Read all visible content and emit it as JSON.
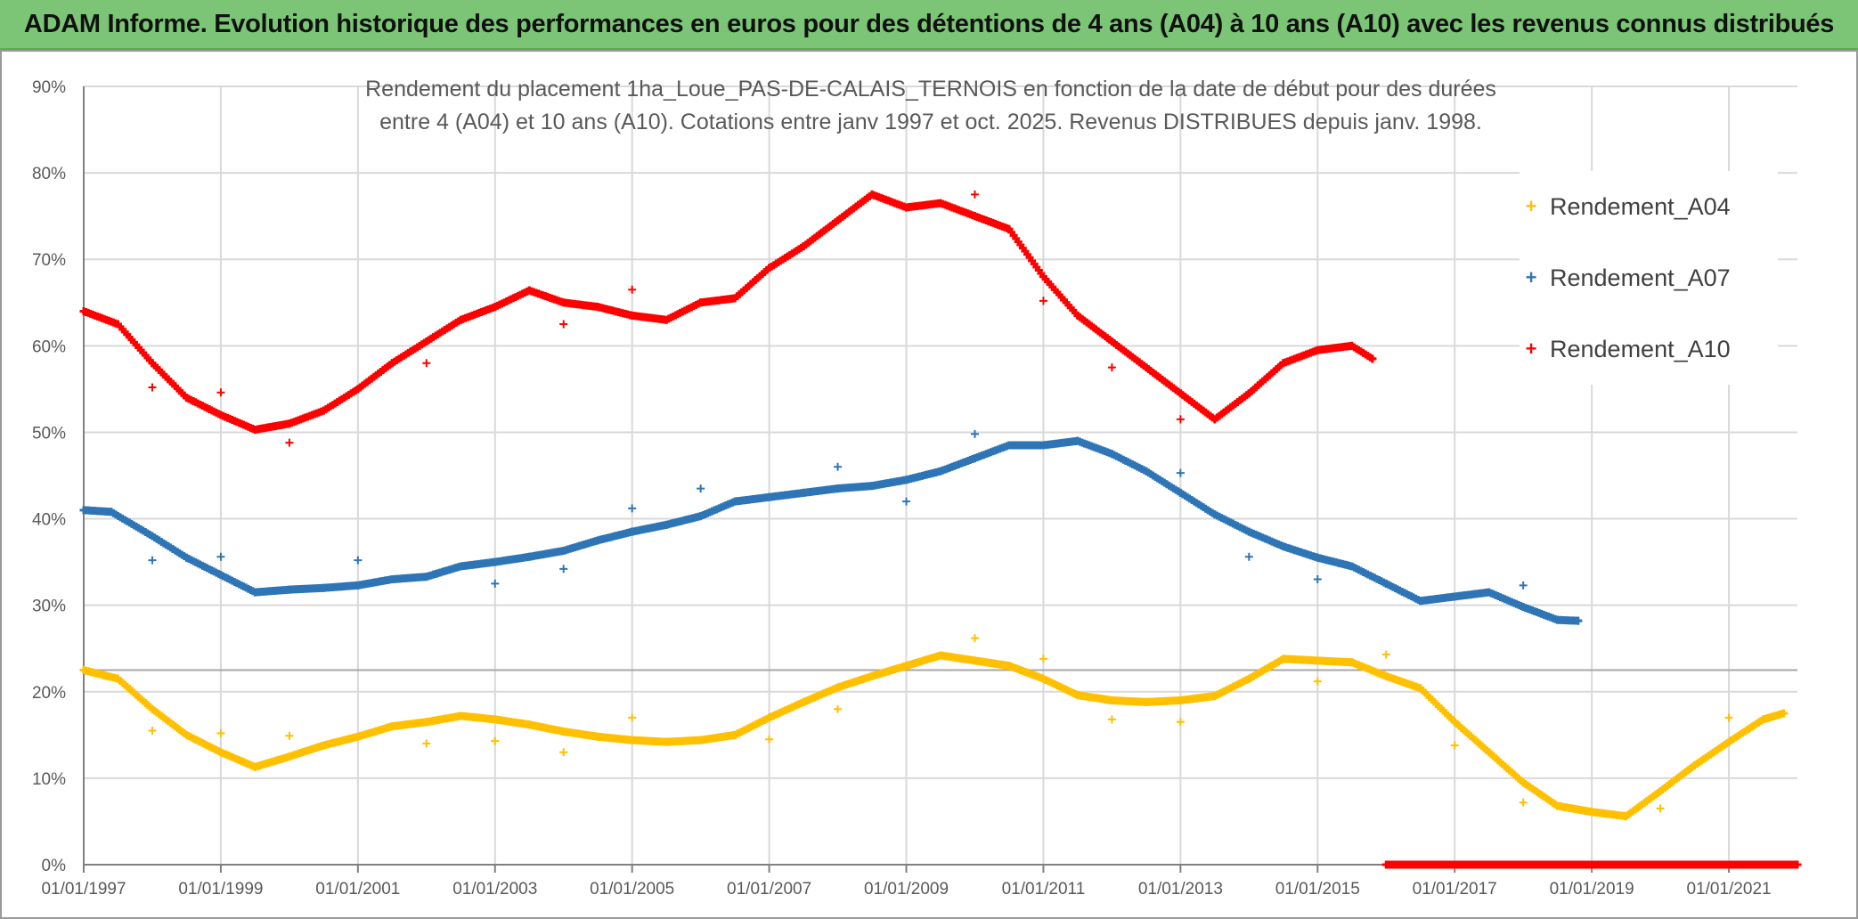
{
  "banner": {
    "title": "ADAM Informe. Evolution historique des performances en euros pour des détentions de 4 ans (A04) à 10 ans (A10) avec les revenus connus distribués"
  },
  "chart_data": {
    "type": "scatter",
    "title_line1": "Rendement du placement 1ha_Loue_PAS-DE-CALAIS_TERNOIS en fonction de la date de début pour des durées",
    "title_line2": "entre 4 (A04) et 10 ans (A10). Cotations entre janv 1997 et oct. 2025. Revenus DISTRIBUES depuis janv. 1998.",
    "xlabel": "",
    "ylabel": "",
    "xlim": [
      1997.0,
      2022.0
    ],
    "ylim": [
      0,
      90
    ],
    "grid": true,
    "legend_position": "top-right",
    "x_tick_values": [
      1997,
      1999,
      2001,
      2003,
      2005,
      2007,
      2009,
      2011,
      2013,
      2015,
      2017,
      2019,
      2021
    ],
    "x_tick_labels": [
      "01/01/1997",
      "01/01/1999",
      "01/01/2001",
      "01/01/2003",
      "01/01/2005",
      "01/01/2007",
      "01/01/2009",
      "01/01/2011",
      "01/01/2013",
      "01/01/2015",
      "01/01/2017",
      "01/01/2019",
      "01/01/2021"
    ],
    "y_tick_values": [
      0,
      10,
      20,
      30,
      40,
      50,
      60,
      70,
      80,
      90
    ],
    "y_tick_labels": [
      "0%",
      "10%",
      "20%",
      "30%",
      "40%",
      "50%",
      "60%",
      "70%",
      "80%",
      "90%"
    ],
    "reference_line_y": 22.5,
    "series": [
      {
        "name": "Rendement_A04",
        "color": "#ffc000",
        "marker": "+",
        "x": [
          1997.0,
          1997.5,
          1998.0,
          1998.5,
          1999.0,
          1999.5,
          2000.0,
          2000.5,
          2001.0,
          2001.5,
          2002.0,
          2002.5,
          2003.0,
          2003.5,
          2004.0,
          2004.5,
          2005.0,
          2005.5,
          2006.0,
          2006.5,
          2007.0,
          2007.5,
          2008.0,
          2008.5,
          2009.0,
          2009.5,
          2010.0,
          2010.5,
          2011.0,
          2011.5,
          2012.0,
          2012.5,
          2013.0,
          2013.5,
          2014.0,
          2014.5,
          2015.0,
          2015.5,
          2016.0,
          2016.5,
          2017.0,
          2017.5,
          2018.0,
          2018.5,
          2019.0,
          2019.5,
          2020.0,
          2020.5,
          2021.0,
          2021.5,
          2021.8
        ],
        "values": [
          22.5,
          21.5,
          18.0,
          15.0,
          13.0,
          11.3,
          12.5,
          13.8,
          14.8,
          16.0,
          16.5,
          17.2,
          16.8,
          16.2,
          15.4,
          14.8,
          14.4,
          14.2,
          14.4,
          15.0,
          17.0,
          18.8,
          20.5,
          21.8,
          23.0,
          24.2,
          23.6,
          23.0,
          21.5,
          19.6,
          19.0,
          18.8,
          19.0,
          19.5,
          21.5,
          23.8,
          23.6,
          23.4,
          21.8,
          20.4,
          16.5,
          13.0,
          9.5,
          6.8,
          6.1,
          5.6,
          8.5,
          11.5,
          14.2,
          16.8,
          17.5
        ],
        "outliers_x": [
          1998.0,
          1999.0,
          2000.0,
          2002.0,
          2003.0,
          2004.0,
          2005.0,
          2007.0,
          2008.0,
          2010.0,
          2011.0,
          2012.0,
          2013.0,
          2015.0,
          2016.0,
          2017.0,
          2018.0,
          2020.0,
          2021.0
        ],
        "outliers_values": [
          15.5,
          15.2,
          14.9,
          14.0,
          14.3,
          13.0,
          17.0,
          14.5,
          18.0,
          26.2,
          23.8,
          16.8,
          16.5,
          21.2,
          24.3,
          13.8,
          7.2,
          6.5,
          17.0
        ]
      },
      {
        "name": "Rendement_A07",
        "color": "#2e75b6",
        "marker": "+",
        "x": [
          1997.0,
          1997.4,
          1998.0,
          1998.5,
          1999.0,
          1999.5,
          2000.0,
          2000.5,
          2001.0,
          2001.5,
          2002.0,
          2002.5,
          2003.0,
          2003.5,
          2004.0,
          2004.5,
          2005.0,
          2005.5,
          2006.0,
          2006.5,
          2007.0,
          2007.5,
          2008.0,
          2008.5,
          2009.0,
          2009.5,
          2010.0,
          2010.5,
          2011.0,
          2011.5,
          2012.0,
          2012.5,
          2013.0,
          2013.5,
          2014.0,
          2014.5,
          2015.0,
          2015.5,
          2016.0,
          2016.5,
          2017.0,
          2017.5,
          2018.0,
          2018.5,
          2018.8
        ],
        "values": [
          41.0,
          40.8,
          38.0,
          35.5,
          33.5,
          31.5,
          31.8,
          32.0,
          32.3,
          33.0,
          33.3,
          34.5,
          35.0,
          35.6,
          36.3,
          37.5,
          38.5,
          39.3,
          40.3,
          42.0,
          42.5,
          43.0,
          43.5,
          43.8,
          44.5,
          45.5,
          47.0,
          48.5,
          48.5,
          49.0,
          47.5,
          45.5,
          43.0,
          40.5,
          38.5,
          36.8,
          35.5,
          34.5,
          32.5,
          30.5,
          31.0,
          31.5,
          29.8,
          28.3,
          28.2
        ],
        "outliers_x": [
          1998.0,
          1999.0,
          2001.0,
          2003.0,
          2004.0,
          2005.0,
          2006.0,
          2008.0,
          2009.0,
          2010.0,
          2013.0,
          2014.0,
          2015.0,
          2018.0
        ],
        "outliers_values": [
          35.2,
          35.6,
          35.2,
          32.5,
          34.2,
          41.2,
          43.5,
          46.0,
          42.0,
          49.8,
          45.3,
          35.6,
          33.0,
          32.3
        ]
      },
      {
        "name": "Rendement_A10",
        "color": "#ff0000",
        "marker": "+",
        "x": [
          1997.0,
          1997.5,
          1998.0,
          1998.5,
          1999.0,
          1999.5,
          2000.0,
          2000.5,
          2001.0,
          2001.5,
          2002.0,
          2002.5,
          2003.0,
          2003.5,
          2004.0,
          2004.5,
          2005.0,
          2005.5,
          2006.0,
          2006.5,
          2007.0,
          2007.5,
          2008.0,
          2008.5,
          2009.0,
          2009.5,
          2010.0,
          2010.5,
          2011.0,
          2011.5,
          2012.0,
          2012.5,
          2013.0,
          2013.5,
          2014.0,
          2014.5,
          2015.0,
          2015.5,
          2015.8
        ],
        "values": [
          64.0,
          62.5,
          58.0,
          54.0,
          52.0,
          50.3,
          51.0,
          52.5,
          55.0,
          58.0,
          60.5,
          63.0,
          64.5,
          66.4,
          65.0,
          64.5,
          63.5,
          63.0,
          65.0,
          65.5,
          69.0,
          71.5,
          74.5,
          77.5,
          76.0,
          76.5,
          75.0,
          73.5,
          68.0,
          63.5,
          60.5,
          57.5,
          54.5,
          51.5,
          54.5,
          58.0,
          59.5,
          60.0,
          58.5
        ],
        "outliers_x": [
          1998.0,
          1999.0,
          2000.0,
          2002.0,
          2004.0,
          2005.0,
          2010.0,
          2011.0,
          2012.0,
          2013.0
        ],
        "outliers_values": [
          55.2,
          54.6,
          48.8,
          58.0,
          62.5,
          66.5,
          77.5,
          65.2,
          57.5,
          51.5
        ],
        "zero_band_x": [
          2016.0,
          2022.0
        ],
        "zero_band_value": 0
      }
    ]
  }
}
